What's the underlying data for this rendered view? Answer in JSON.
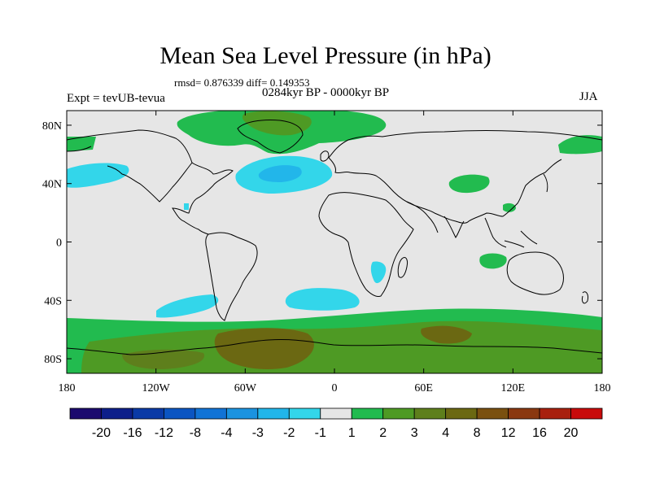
{
  "title": "Mean Sea Level Pressure (in hPa)",
  "stats_line": "rmsd= 0.876339 diff= 0.149353",
  "period_line": "0284kyr BP - 0000kyr BP",
  "experiment_label": "Expt = tevUB-tevua",
  "season_label": "JJA",
  "map": {
    "land_color": "#e6e6e6",
    "y_ticks": [
      {
        "label": "80N",
        "lat": 80
      },
      {
        "label": "40N",
        "lat": 40
      },
      {
        "label": "0",
        "lat": 0
      },
      {
        "label": "40S",
        "lat": -40
      },
      {
        "label": "80S",
        "lat": -80
      }
    ],
    "x_ticks": [
      {
        "label": "180",
        "lon": -180
      },
      {
        "label": "120W",
        "lon": -120
      },
      {
        "label": "60W",
        "lon": -60
      },
      {
        "label": "0",
        "lon": 0
      },
      {
        "label": "60E",
        "lon": 60
      },
      {
        "label": "120E",
        "lon": 120
      },
      {
        "label": "180",
        "lon": 180
      }
    ]
  },
  "colorbar": {
    "colors": [
      "#1b0a6e",
      "#0d1f8a",
      "#0a3aa6",
      "#0b55c2",
      "#1173d6",
      "#1b93e0",
      "#22b6ea",
      "#33d6ea",
      "#e6e6e6",
      "#22bb4f",
      "#4e9a24",
      "#5e7f1c",
      "#6b6812",
      "#7a5010",
      "#8a3810",
      "#a8200e",
      "#c80b0b"
    ],
    "labels": [
      "-20",
      "-16",
      "-12",
      "-8",
      "-4",
      "-3",
      "-2",
      "-1",
      "1",
      "2",
      "3",
      "4",
      "8",
      "12",
      "16",
      "20"
    ]
  }
}
